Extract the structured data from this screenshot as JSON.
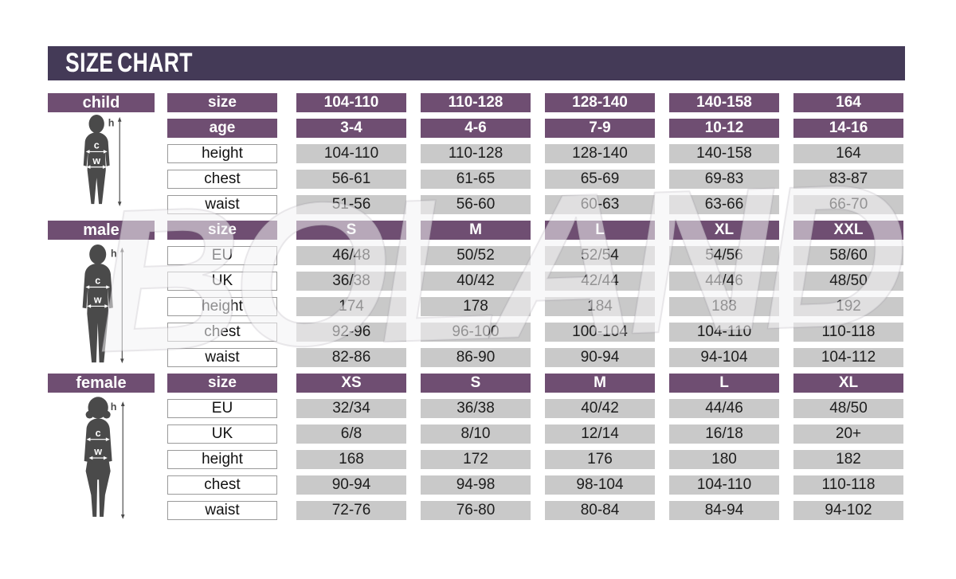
{
  "header": {
    "title": "SIZE CHART",
    "watermark": "BOLAND"
  },
  "colors": {
    "title_bar": "#443a57",
    "header_purple": "#6f4e72",
    "cell_gray": "#c9c9c9",
    "silhouette_gray": "#4a4a4a",
    "page_background": "#ffffff"
  },
  "figure_labels": {
    "height": "h",
    "chest": "c",
    "waist": "w"
  },
  "chart_data": [
    {
      "type": "table",
      "section_label": "child",
      "figure": "child",
      "rows": [
        {
          "label": "size",
          "style": "header",
          "values": [
            "104-110",
            "110-128",
            "128-140",
            "140-158",
            "164"
          ]
        },
        {
          "label": "age",
          "style": "header",
          "values": [
            "3-4",
            "4-6",
            "7-9",
            "10-12",
            "14-16"
          ]
        },
        {
          "label": "height",
          "style": "data",
          "values": [
            "104-110",
            "110-128",
            "128-140",
            "140-158",
            "164"
          ]
        },
        {
          "label": "chest",
          "style": "data",
          "values": [
            "56-61",
            "61-65",
            "65-69",
            "69-83",
            "83-87"
          ]
        },
        {
          "label": "waist",
          "style": "data",
          "values": [
            "51-56",
            "56-60",
            "60-63",
            "63-66",
            "66-70"
          ]
        }
      ]
    },
    {
      "type": "table",
      "section_label": "male",
      "figure": "male",
      "rows": [
        {
          "label": "size",
          "style": "header",
          "values": [
            "S",
            "M",
            "L",
            "XL",
            "XXL"
          ]
        },
        {
          "label": "EU",
          "style": "data",
          "values": [
            "46/48",
            "50/52",
            "52/54",
            "54/56",
            "58/60"
          ]
        },
        {
          "label": "UK",
          "style": "data",
          "values": [
            "36/38",
            "40/42",
            "42/44",
            "44/46",
            "48/50"
          ]
        },
        {
          "label": "height",
          "style": "data",
          "values": [
            "174",
            "178",
            "184",
            "188",
            "192"
          ]
        },
        {
          "label": "chest",
          "style": "data",
          "values": [
            "92-96",
            "96-100",
            "100-104",
            "104-110",
            "110-118"
          ]
        },
        {
          "label": "waist",
          "style": "data",
          "values": [
            "82-86",
            "86-90",
            "90-94",
            "94-104",
            "104-112"
          ]
        }
      ]
    },
    {
      "type": "table",
      "section_label": "female",
      "figure": "female",
      "rows": [
        {
          "label": "size",
          "style": "header",
          "values": [
            "XS",
            "S",
            "M",
            "L",
            "XL"
          ]
        },
        {
          "label": "EU",
          "style": "data",
          "values": [
            "32/34",
            "36/38",
            "40/42",
            "44/46",
            "48/50"
          ]
        },
        {
          "label": "UK",
          "style": "data",
          "values": [
            "6/8",
            "8/10",
            "12/14",
            "16/18",
            "20+"
          ]
        },
        {
          "label": "height",
          "style": "data",
          "values": [
            "168",
            "172",
            "176",
            "180",
            "182"
          ]
        },
        {
          "label": "chest",
          "style": "data",
          "values": [
            "90-94",
            "94-98",
            "98-104",
            "104-110",
            "110-118"
          ]
        },
        {
          "label": "waist",
          "style": "data",
          "values": [
            "72-76",
            "76-80",
            "80-84",
            "84-94",
            "94-102"
          ]
        }
      ]
    }
  ]
}
